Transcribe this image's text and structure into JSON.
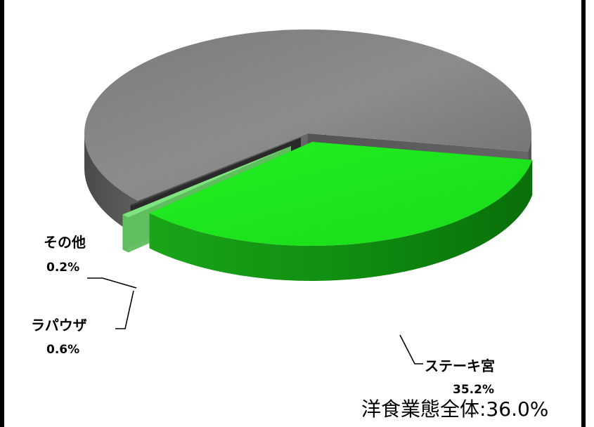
{
  "chart_data": {
    "type": "pie",
    "style": "3d-exploded",
    "title": "",
    "total_label": "洋食業態全体:36.0%",
    "slices": [
      {
        "name": "ステーキ宮",
        "value": 35.2,
        "display": "35.2%",
        "color": "#1ee61e"
      },
      {
        "name": "ラパウザ",
        "value": 0.6,
        "display": "0.6%",
        "color": "#7de07d"
      },
      {
        "name": "その他",
        "value": 0.2,
        "display": "0.2%",
        "color": "#3a3a3a"
      },
      {
        "name": "",
        "value": 64.0,
        "display": "",
        "color": "#8a8a8a"
      }
    ]
  }
}
